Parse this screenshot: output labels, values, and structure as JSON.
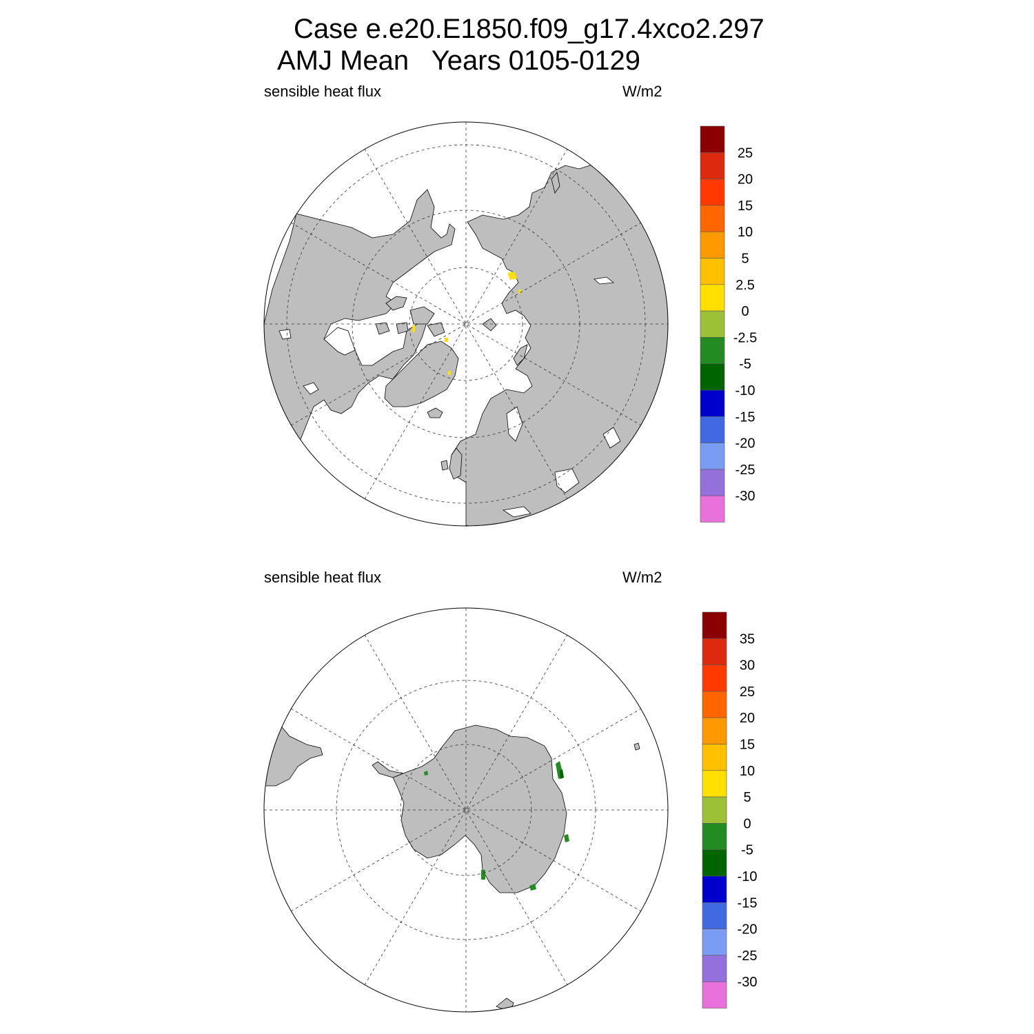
{
  "title": {
    "line1": "Case e.e20.E1850.f09_g17.4xco2.297",
    "line2": "AMJ Mean   Years 0105-0129"
  },
  "panels": [
    {
      "id": "north",
      "hemisphere": "Northern Hemisphere polar stereographic",
      "variable_label": "sensible heat flux",
      "units_label": "W/m2",
      "land_color": "#bebebe",
      "colorbar": {
        "colors": [
          "#8b0000",
          "#dd2a0f",
          "#ff3a00",
          "#ff6600",
          "#ff9900",
          "#ffc000",
          "#ffe000",
          "#9cc136",
          "#228b22",
          "#006400",
          "#0000cd",
          "#4169e1",
          "#7b9cf3",
          "#9370db",
          "#e871db"
        ],
        "labels": [
          "25",
          "20",
          "15",
          "10",
          "5",
          "2.5",
          "0",
          "-2.5",
          "-5",
          "-10",
          "-15",
          "-20",
          "-25",
          "-30"
        ]
      }
    },
    {
      "id": "south",
      "hemisphere": "Southern Hemisphere polar stereographic",
      "variable_label": "sensible heat flux",
      "units_label": "W/m2",
      "land_color": "#bebebe",
      "colorbar": {
        "colors": [
          "#8b0000",
          "#dd2a0f",
          "#ff3a00",
          "#ff6600",
          "#ff9900",
          "#ffc000",
          "#ffe000",
          "#9cc136",
          "#228b22",
          "#006400",
          "#0000cd",
          "#4169e1",
          "#7b9cf3",
          "#9370db",
          "#e871db"
        ],
        "labels": [
          "35",
          "30",
          "25",
          "20",
          "15",
          "10",
          "5",
          "0",
          "-5",
          "-10",
          "-15",
          "-20",
          "-25",
          "-30"
        ]
      }
    }
  ]
}
